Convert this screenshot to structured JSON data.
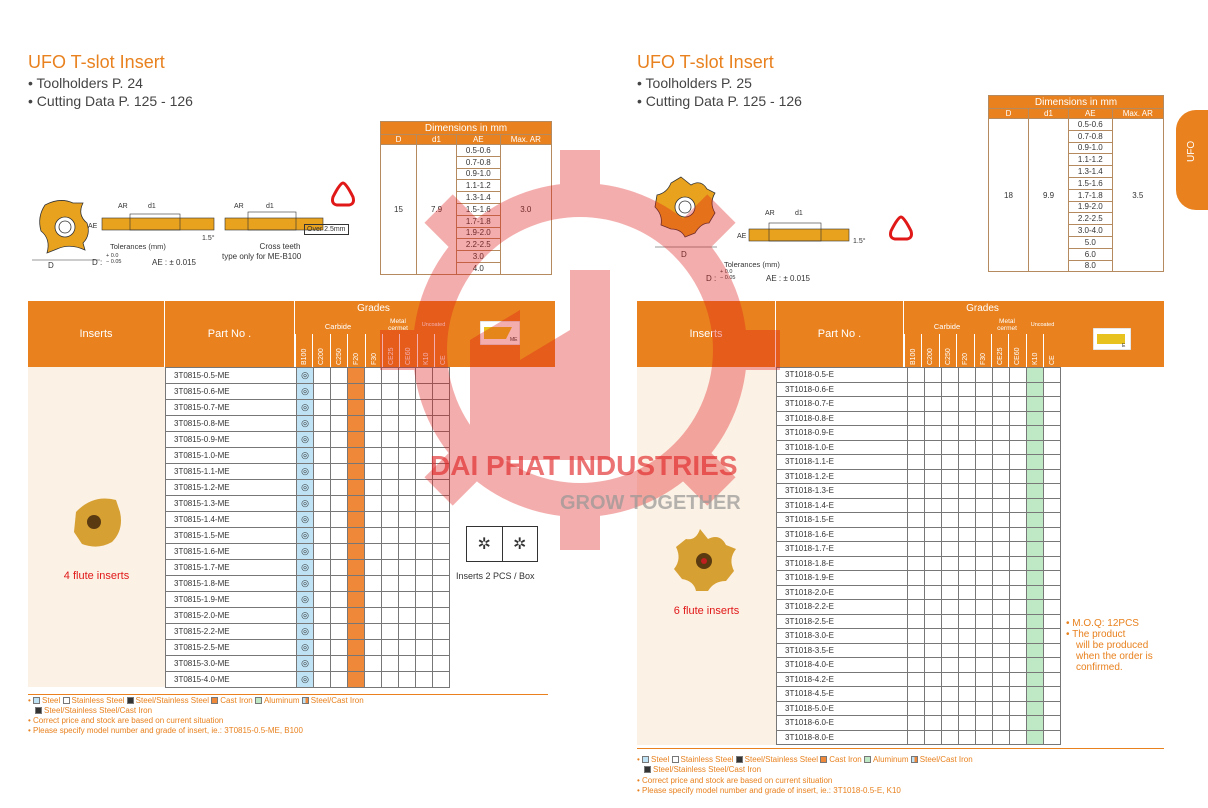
{
  "left": {
    "title": "UFO T-slot Insert",
    "bullet1": "• Toolholders P. 24",
    "bullet2": "• Cutting Data P. 125 - 126",
    "tol_title": "Tolerances (mm)",
    "tol_d": "D :",
    "tol_d_up": "+ 0.0",
    "tol_d_low": "− 0.05",
    "tol_ae": "AE : ± 0.015",
    "cross": "Cross teeth",
    "cross2": "type only for ME-B100",
    "over": "Over 2.5mm",
    "angle": "1.5°",
    "dims": {
      "header": "Dimensions in mm",
      "cols": [
        "D",
        "d1",
        "AE",
        "Max. AR"
      ],
      "D": "15",
      "d1": "7.9",
      "max_ar": "3.0",
      "ae": [
        "0.5-0.6",
        "0.7-0.8",
        "0.9-1.0",
        "1.1-1.2",
        "1.3-1.4",
        "1.5-1.6",
        "1.7-1.8",
        "1.9-2.0",
        "2.2-2.5",
        "3.0",
        "4.0"
      ]
    },
    "table": {
      "inserts": "Inserts",
      "partno": "Part No .",
      "grades": "Grades",
      "carbide": "Carbide",
      "metal": "Metal cermet",
      "uncoated": "Uncoated",
      "grade_cols": [
        "B100",
        "C200",
        "C250",
        "F20",
        "F30",
        "CE25",
        "CE60",
        "K10",
        "CE"
      ],
      "icon_label": "ME",
      "parts": [
        "3T0815-0.5-ME",
        "3T0815-0.6-ME",
        "3T0815-0.7-ME",
        "3T0815-0.8-ME",
        "3T0815-0.9-ME",
        "3T0815-1.0-ME",
        "3T0815-1.1-ME",
        "3T0815-1.2-ME",
        "3T0815-1.3-ME",
        "3T0815-1.4-ME",
        "3T0815-1.5-ME",
        "3T0815-1.6-ME",
        "3T0815-1.7-ME",
        "3T0815-1.8-ME",
        "3T0815-1.9-ME",
        "3T0815-2.0-ME",
        "3T0815-2.2-ME",
        "3T0815-2.5-ME",
        "3T0815-3.0-ME",
        "3T0815-4.0-ME"
      ],
      "flute": "4 flute inserts",
      "box": "Inserts 2 PCS / Box"
    },
    "legend": [
      "Steel",
      "Stainless Steel",
      "Steel/Stainless Steel",
      "Cast Iron",
      "Aluminum",
      "Steel/Cast Iron"
    ],
    "legend2": "Steel/Stainless Steel/Cast Iron",
    "note1": "• Correct price and stock are based on current situation",
    "note2": "• Please specify model number and grade of insert, ie.: 3T0815-0.5-ME, B100"
  },
  "right": {
    "title": "UFO T-slot Insert",
    "bullet1": "• Toolholders P. 25",
    "bullet2": "• Cutting Data P. 125 - 126",
    "tol_title": "Tolerances (mm)",
    "tol_d": "D :",
    "tol_d_up": "+ 0.0",
    "tol_d_low": "− 0.05",
    "tol_ae": "AE : ± 0.015",
    "angle": "1.5°",
    "dims": {
      "header": "Dimensions in mm",
      "cols": [
        "D",
        "d1",
        "AE",
        "Max. AR"
      ],
      "D": "18",
      "d1": "9.9",
      "max_ar": "3.5",
      "ae": [
        "0.5-0.6",
        "0.7-0.8",
        "0.9-1.0",
        "1.1-1.2",
        "1.3-1.4",
        "1.5-1.6",
        "1.7-1.8",
        "1.9-2.0",
        "2.2-2.5",
        "3.0-4.0",
        "5.0",
        "6.0",
        "8.0"
      ]
    },
    "table": {
      "inserts": "Inserts",
      "partno": "Part No .",
      "grades": "Grades",
      "carbide": "Carbide",
      "metal": "Metal cermet",
      "uncoated": "Uncoated",
      "grade_cols": [
        "B100",
        "C200",
        "C250",
        "F20",
        "F30",
        "CE25",
        "CE60",
        "K10",
        "CE"
      ],
      "icon_label": "E",
      "parts": [
        "3T1018-0.5-E",
        "3T1018-0.6-E",
        "3T1018-0.7-E",
        "3T1018-0.8-E",
        "3T1018-0.9-E",
        "3T1018-1.0-E",
        "3T1018-1.1-E",
        "3T1018-1.2-E",
        "3T1018-1.3-E",
        "3T1018-1.4-E",
        "3T1018-1.5-E",
        "3T1018-1.6-E",
        "3T1018-1.7-E",
        "3T1018-1.8-E",
        "3T1018-1.9-E",
        "3T1018-2.0-E",
        "3T1018-2.2-E",
        "3T1018-2.5-E",
        "3T1018-3.0-E",
        "3T1018-3.5-E",
        "3T1018-4.0-E",
        "3T1018-4.2-E",
        "3T1018-4.5-E",
        "3T1018-5.0-E",
        "3T1018-6.0-E",
        "3T1018-8.0-E"
      ],
      "flute": "6 flute inserts",
      "moq": [
        "• M.O.Q: 12PCS",
        "• The product",
        "will be produced",
        "when the order is",
        "confirmed."
      ]
    },
    "legend": [
      "Steel",
      "Stainless Steel",
      "Steel/Stainless Steel",
      "Cast Iron",
      "Aluminum",
      "Steel/Cast Iron"
    ],
    "legend2": "Steel/Stainless Steel/Cast Iron",
    "note1": "• Correct price and stock are based on current situation",
    "note2": "• Please specify model number and grade of insert, ie.: 3T1018-0.5-E, K10"
  },
  "side_tab": "UFO",
  "watermark1": "DAI PHAT INDUSTRIES",
  "watermark2": "GROW TOGETHER",
  "colors": {
    "orange": "#e8811e",
    "steel": "#bfe3f5",
    "castiron": "#f0883a",
    "aluminum": "#bfe8c4"
  }
}
